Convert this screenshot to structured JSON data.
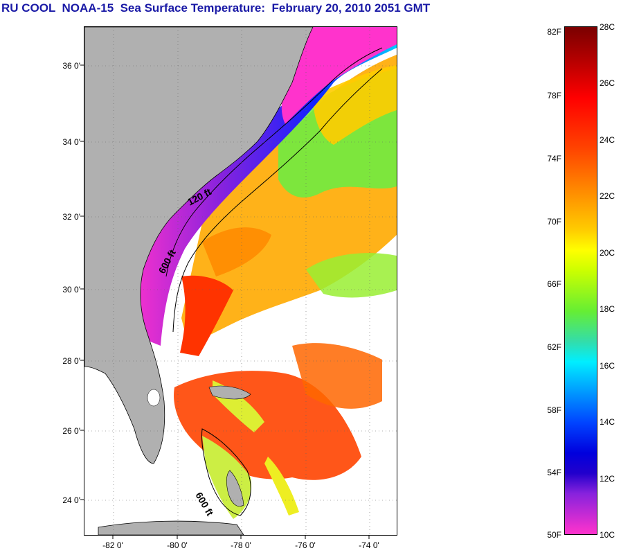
{
  "title": "RU COOL  NOAA-15  Sea Surface Temperature:  February 20, 2010 2051 GMT",
  "latitude_labels": [
    "36 0'",
    "34 0'",
    "32 0'",
    "30 0'",
    "28 0'",
    "26 0'",
    "24 0'"
  ],
  "longitude_labels": [
    "-82 0'",
    "-80 0'",
    "-78 0'",
    "-76 0'",
    "-74 0'"
  ],
  "contour_labels": [
    "120 ft",
    "600 ft",
    "600 ft"
  ],
  "colorbar": {
    "fahrenheit_labels": [
      "82F",
      "78F",
      "74F",
      "70F",
      "66F",
      "62F",
      "58F",
      "54F",
      "50F"
    ],
    "celsius_labels": [
      "28C",
      "26C",
      "24C",
      "22C",
      "20C",
      "18C",
      "16C",
      "14C",
      "12C",
      "10C"
    ]
  },
  "colors": {
    "title": "#1a1aa6",
    "land": "#b0b0b0",
    "cold": "#ff33cc",
    "warm": "#ff2200"
  }
}
